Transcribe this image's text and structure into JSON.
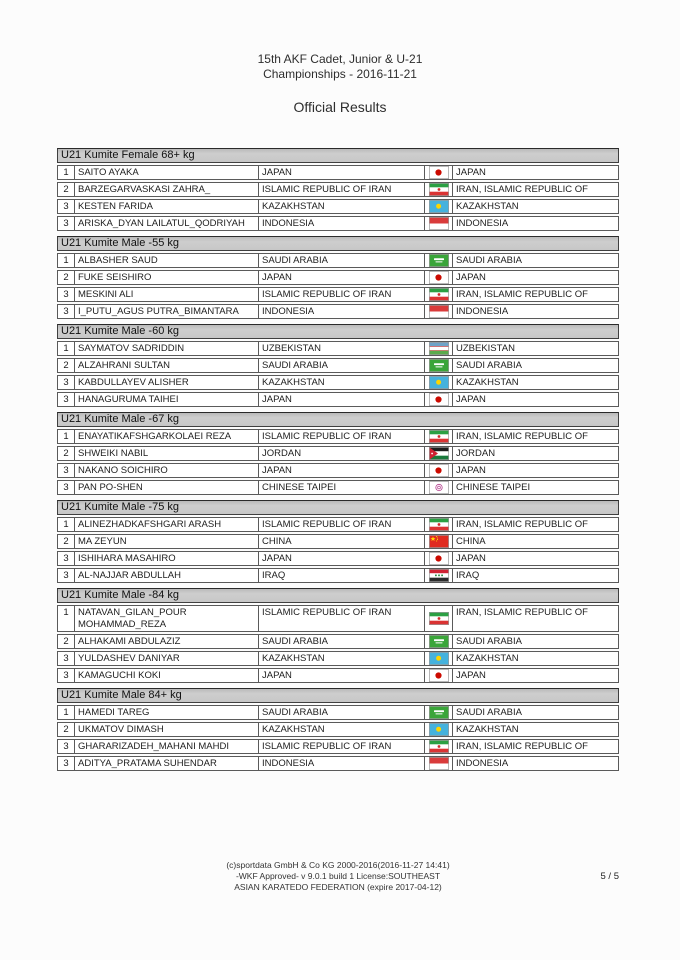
{
  "header": {
    "title_line1": "15th AKF Cadet, Junior & U-21",
    "title_line2": "Championships - 2016-11-21",
    "subtitle": "Official Results"
  },
  "footer": {
    "line1": "(c)sportdata GmbH & Co KG 2000-2016(2016-11-27 14:41)",
    "line2": "-WKF Approved- v 9.0.1 build 1 License:SOUTHEAST",
    "line3": "ASIAN KARATEDO FEDERATION (expire 2017-04-12)",
    "page_number": "5 / 5"
  },
  "colors": {
    "table_header_bg": "#c8c8c8",
    "table_border": "#5a5a5a"
  },
  "tables": [
    {
      "title": "U21 Kumite Female 68+ kg",
      "rows": [
        {
          "rank": "1",
          "name": "SAITO AYAKA",
          "country": "JAPAN",
          "flag": "japan",
          "country2": "JAPAN"
        },
        {
          "rank": "2",
          "name": "BARZEGARVASKASI ZAHRA_",
          "country": "ISLAMIC REPUBLIC OF IRAN",
          "flag": "iran",
          "country2": "IRAN, ISLAMIC REPUBLIC OF"
        },
        {
          "rank": "3",
          "name": "KESTEN FARIDA",
          "country": "KAZAKHSTAN",
          "flag": "kazakhstan",
          "country2": "KAZAKHSTAN"
        },
        {
          "rank": "3",
          "name": "ARISKA_DYAN LAILATUL_QODRIYAH",
          "country": "INDONESIA",
          "flag": "indonesia",
          "country2": "INDONESIA"
        }
      ]
    },
    {
      "title": "U21 Kumite Male -55 kg",
      "rows": [
        {
          "rank": "1",
          "name": "ALBASHER SAUD",
          "country": "SAUDI ARABIA",
          "flag": "saudi-arabia",
          "country2": "SAUDI ARABIA"
        },
        {
          "rank": "2",
          "name": "FUKE SEISHIRO",
          "country": "JAPAN",
          "flag": "japan",
          "country2": "JAPAN"
        },
        {
          "rank": "3",
          "name": "MESKINI ALI",
          "country": "ISLAMIC REPUBLIC OF IRAN",
          "flag": "iran",
          "country2": "IRAN, ISLAMIC REPUBLIC OF"
        },
        {
          "rank": "3",
          "name": "I_PUTU_AGUS PUTRA_BIMANTARA",
          "country": "INDONESIA",
          "flag": "indonesia",
          "country2": "INDONESIA"
        }
      ]
    },
    {
      "title": "U21 Kumite Male -60 kg",
      "rows": [
        {
          "rank": "1",
          "name": "SAYMATOV SADRIDDIN",
          "country": "UZBEKISTAN",
          "flag": "uzbekistan",
          "country2": "UZBEKISTAN"
        },
        {
          "rank": "2",
          "name": "ALZAHRANI SULTAN",
          "country": "SAUDI ARABIA",
          "flag": "saudi-arabia",
          "country2": "SAUDI ARABIA"
        },
        {
          "rank": "3",
          "name": "KABDULLAYEV ALISHER",
          "country": "KAZAKHSTAN",
          "flag": "kazakhstan",
          "country2": "KAZAKHSTAN"
        },
        {
          "rank": "3",
          "name": "HANAGURUMA TAIHEI",
          "country": "JAPAN",
          "flag": "japan",
          "country2": "JAPAN"
        }
      ]
    },
    {
      "title": "U21 Kumite Male -67 kg",
      "rows": [
        {
          "rank": "1",
          "name": "ENAYATIKAFSHGARKOLAEI REZA",
          "country": "ISLAMIC REPUBLIC OF IRAN",
          "flag": "iran",
          "country2": "IRAN, ISLAMIC REPUBLIC OF"
        },
        {
          "rank": "2",
          "name": "SHWEIKI NABIL",
          "country": "JORDAN",
          "flag": "jordan",
          "country2": "JORDAN"
        },
        {
          "rank": "3",
          "name": "NAKANO SOICHIRO",
          "country": "JAPAN",
          "flag": "japan",
          "country2": "JAPAN"
        },
        {
          "rank": "3",
          "name": "PAN PO-SHEN",
          "country": "CHINESE TAIPEI",
          "flag": "chinese-taipei",
          "country2": "CHINESE TAIPEI"
        }
      ]
    },
    {
      "title": "U21 Kumite Male -75 kg",
      "rows": [
        {
          "rank": "1",
          "name": "ALINEZHADKAFSHGARI ARASH",
          "country": "ISLAMIC REPUBLIC OF IRAN",
          "flag": "iran",
          "country2": "IRAN, ISLAMIC REPUBLIC OF"
        },
        {
          "rank": "2",
          "name": "MA ZEYUN",
          "country": "CHINA",
          "flag": "china",
          "country2": "CHINA"
        },
        {
          "rank": "3",
          "name": "ISHIHARA MASAHIRO",
          "country": "JAPAN",
          "flag": "japan",
          "country2": "JAPAN"
        },
        {
          "rank": "3",
          "name": "AL-NAJJAR ABDULLAH",
          "country": "IRAQ",
          "flag": "iraq",
          "country2": "IRAQ"
        }
      ]
    },
    {
      "title": "U21 Kumite Male -84 kg",
      "rows": [
        {
          "rank": "1",
          "name": "NATAVAN_GILAN_POUR MOHAMMAD_REZA",
          "country": "ISLAMIC REPUBLIC OF IRAN",
          "flag": "iran",
          "country2": "IRAN, ISLAMIC REPUBLIC OF"
        },
        {
          "rank": "2",
          "name": "ALHAKAMI ABDULAZIZ",
          "country": "SAUDI ARABIA",
          "flag": "saudi-arabia",
          "country2": "SAUDI ARABIA"
        },
        {
          "rank": "3",
          "name": "YULDASHEV DANIYAR",
          "country": "KAZAKHSTAN",
          "flag": "kazakhstan",
          "country2": "KAZAKHSTAN"
        },
        {
          "rank": "3",
          "name": "KAMAGUCHI KOKI",
          "country": "JAPAN",
          "flag": "japan",
          "country2": "JAPAN"
        }
      ]
    },
    {
      "title": "U21 Kumite Male 84+ kg",
      "rows": [
        {
          "rank": "1",
          "name": "HAMEDI TAREG",
          "country": "SAUDI ARABIA",
          "flag": "saudi-arabia",
          "country2": "SAUDI ARABIA"
        },
        {
          "rank": "2",
          "name": "UKMATOV DIMASH",
          "country": "KAZAKHSTAN",
          "flag": "kazakhstan",
          "country2": "KAZAKHSTAN"
        },
        {
          "rank": "3",
          "name": "GHARARIZADEH_MAHANI MAHDI",
          "country": "ISLAMIC REPUBLIC OF IRAN",
          "flag": "iran",
          "country2": "IRAN, ISLAMIC REPUBLIC OF"
        },
        {
          "rank": "3",
          "name": "ADITYA_PRATAMA SUHENDAR",
          "country": "INDONESIA",
          "flag": "indonesia",
          "country2": "INDONESIA"
        }
      ]
    }
  ]
}
